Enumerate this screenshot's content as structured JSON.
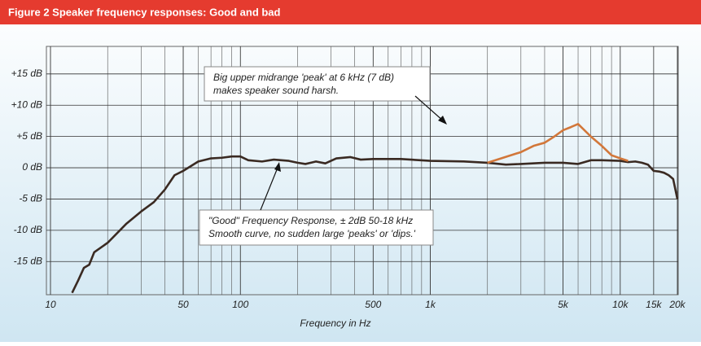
{
  "chart_data": {
    "type": "line",
    "title": "Figure 2 Speaker frequency responses: Good and bad",
    "x_label": "Frequency in Hz",
    "x_scale": "log",
    "xlim": [
      10,
      20000
    ],
    "ylim": [
      -20.3,
      19.4
    ],
    "xticks": [
      10,
      50,
      100,
      500,
      {
        "value": 1000,
        "label": "1k"
      },
      {
        "value": 5000,
        "label": "5k"
      },
      {
        "value": 10000,
        "label": "10k"
      },
      {
        "value": 15000,
        "label": "15k"
      },
      {
        "value": 20000,
        "label": "20k"
      }
    ],
    "yticks": [
      {
        "value": 15,
        "label": "+15 dB"
      },
      {
        "value": 10,
        "label": "+10 dB"
      },
      {
        "value": 5,
        "label": "+5 dB"
      },
      {
        "value": 0,
        "label": "0 dB"
      },
      {
        "value": -5,
        "label": "-5 dB"
      },
      {
        "value": -10,
        "label": "-10 dB"
      },
      {
        "value": -15,
        "label": "-15 dB"
      }
    ],
    "grid": true,
    "minor_grid": true,
    "series": [
      {
        "color": "#d2773a",
        "x": [
          2000,
          3000,
          3500,
          4000,
          4500,
          5000,
          5500,
          6000,
          7000,
          8000,
          9000,
          10000,
          11000
        ],
        "values": [
          0.8,
          2.5,
          3.5,
          4,
          5,
          6,
          6.5,
          7,
          5,
          3.5,
          2,
          1.5,
          1.1
        ]
      },
      {
        "color": "#3a2a22",
        "x": [
          13,
          14,
          15,
          16,
          17,
          20,
          25,
          30,
          35,
          40,
          45,
          50,
          60,
          70,
          80,
          90,
          100,
          110,
          130,
          150,
          180,
          200,
          220,
          250,
          280,
          320,
          380,
          430,
          500,
          700,
          1000,
          1500,
          2000,
          2500,
          3000,
          4000,
          5000,
          6000,
          7000,
          8000,
          10000,
          11000,
          12000,
          13000,
          14000,
          15000,
          16000,
          17000,
          18000,
          19000,
          20000
        ],
        "values": [
          -20,
          -18,
          -16,
          -15.5,
          -13.5,
          -12,
          -9,
          -7,
          -5.5,
          -3.5,
          -1.2,
          -0.5,
          1,
          1.5,
          1.6,
          1.8,
          1.8,
          1.2,
          1,
          1.3,
          1.1,
          0.8,
          0.6,
          1,
          0.7,
          1.5,
          1.7,
          1.3,
          1.4,
          1.4,
          1.1,
          1,
          0.8,
          0.5,
          0.6,
          0.8,
          0.8,
          0.6,
          1.2,
          1.2,
          1.1,
          0.9,
          1,
          0.8,
          0.5,
          -0.5,
          -0.6,
          -0.8,
          -1.2,
          -1.8,
          -5
        ]
      }
    ],
    "annotations": [
      {
        "lines": [
          "Big upper midrange 'peak' at 6 kHz (7 dB)",
          "makes  speaker sound harsh."
        ]
      },
      {
        "lines": [
          "\"Good\" Frequency Response, ± 2dB 50-18 kHz",
          "Smooth curve, no sudden large 'peaks' or 'dips.'"
        ]
      }
    ]
  }
}
